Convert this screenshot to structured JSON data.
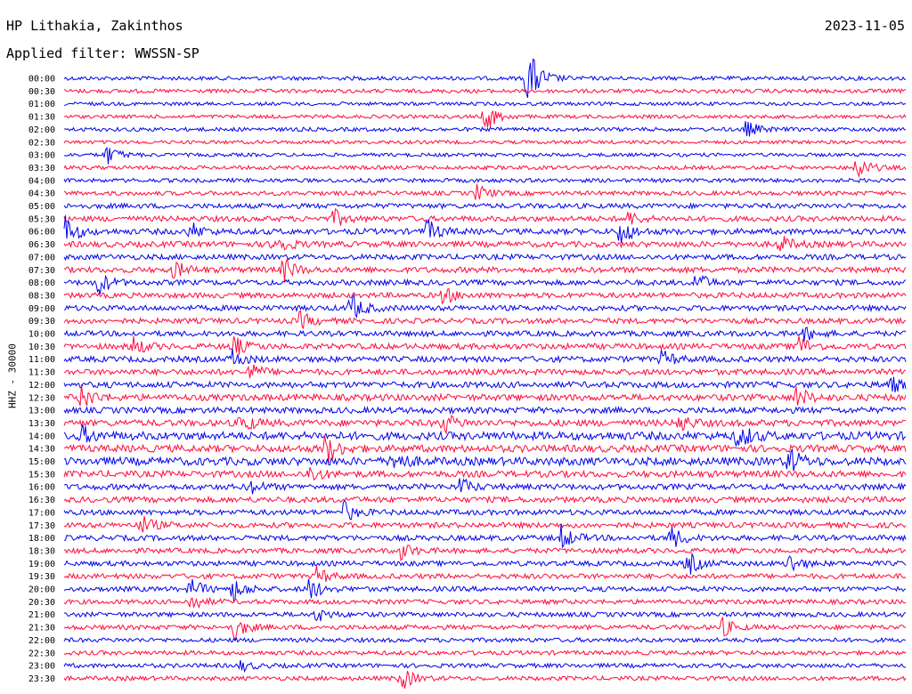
{
  "header": {
    "station": "HP Lithakia, Zakinthos",
    "filter": "Applied filter: WWSSN-SP",
    "date": "2023-11-05"
  },
  "side_label": "HHZ - 30000",
  "colors": {
    "blue": "#0000ee",
    "red": "#ff0a3c",
    "text": "#000000",
    "background": "#ffffff"
  },
  "chart_data": {
    "type": "line",
    "title": "HP Lithakia, Zakinthos",
    "subtitle": "Applied filter: WWSSN-SP",
    "ylabel": "HHZ - 30000",
    "color_pattern": [
      "blue",
      "red"
    ],
    "row_labels": [
      "00:00",
      "00:30",
      "01:00",
      "01:30",
      "02:00",
      "02:30",
      "03:00",
      "03:30",
      "04:00",
      "04:30",
      "05:00",
      "05:30",
      "06:00",
      "06:30",
      "07:00",
      "07:30",
      "08:00",
      "08:30",
      "09:00",
      "09:30",
      "10:00",
      "10:30",
      "11:00",
      "11:30",
      "12:00",
      "12:30",
      "13:00",
      "13:30",
      "14:00",
      "14:30",
      "15:00",
      "15:30",
      "16:00",
      "16:30",
      "17:00",
      "17:30",
      "18:00",
      "18:30",
      "19:00",
      "19:30",
      "20:00",
      "20:30",
      "21:00",
      "21:30",
      "22:00",
      "22:30",
      "23:00",
      "23:30"
    ],
    "noise_level": [
      2.2,
      2.2,
      2.0,
      2.0,
      2.2,
      2.0,
      2.0,
      2.2,
      2.2,
      2.4,
      2.8,
      3.0,
      3.2,
      3.2,
      3.0,
      3.2,
      3.0,
      3.0,
      3.0,
      3.0,
      3.0,
      3.2,
      3.2,
      3.2,
      3.4,
      3.6,
      3.4,
      3.6,
      4.5,
      4.0,
      4.5,
      3.6,
      3.2,
      3.2,
      3.0,
      3.0,
      3.0,
      2.8,
      2.8,
      2.8,
      2.8,
      2.6,
      2.6,
      2.6,
      2.4,
      2.4,
      2.4,
      2.4
    ],
    "events": [
      {
        "row": 0,
        "t": 0.55,
        "amp": 40
      },
      {
        "row": 3,
        "t": 0.5,
        "amp": 18
      },
      {
        "row": 4,
        "t": 0.81,
        "amp": 10
      },
      {
        "row": 6,
        "t": 0.05,
        "amp": 12
      },
      {
        "row": 7,
        "t": 0.94,
        "amp": 16
      },
      {
        "row": 9,
        "t": 0.49,
        "amp": 10
      },
      {
        "row": 11,
        "t": 0.32,
        "amp": 10
      },
      {
        "row": 11,
        "t": 0.67,
        "amp": 8
      },
      {
        "row": 12,
        "t": 0.0,
        "amp": 18
      },
      {
        "row": 12,
        "t": 0.15,
        "amp": 10
      },
      {
        "row": 12,
        "t": 0.43,
        "amp": 14
      },
      {
        "row": 12,
        "t": 0.66,
        "amp": 16
      },
      {
        "row": 13,
        "t": 0.25,
        "amp": 14
      },
      {
        "row": 13,
        "t": 0.85,
        "amp": 10
      },
      {
        "row": 15,
        "t": 0.13,
        "amp": 10
      },
      {
        "row": 15,
        "t": 0.26,
        "amp": 14
      },
      {
        "row": 16,
        "t": 0.04,
        "amp": 14
      },
      {
        "row": 16,
        "t": 0.75,
        "amp": 12
      },
      {
        "row": 17,
        "t": 0.45,
        "amp": 10
      },
      {
        "row": 18,
        "t": 0.34,
        "amp": 18
      },
      {
        "row": 19,
        "t": 0.28,
        "amp": 10
      },
      {
        "row": 20,
        "t": 0.88,
        "amp": 8
      },
      {
        "row": 21,
        "t": 0.08,
        "amp": 12
      },
      {
        "row": 21,
        "t": 0.2,
        "amp": 12
      },
      {
        "row": 21,
        "t": 0.87,
        "amp": 14
      },
      {
        "row": 22,
        "t": 0.2,
        "amp": 10
      },
      {
        "row": 22,
        "t": 0.71,
        "amp": 10
      },
      {
        "row": 23,
        "t": 0.22,
        "amp": 10
      },
      {
        "row": 24,
        "t": 0.98,
        "amp": 10
      },
      {
        "row": 25,
        "t": 0.02,
        "amp": 14
      },
      {
        "row": 25,
        "t": 0.87,
        "amp": 12
      },
      {
        "row": 27,
        "t": 0.21,
        "amp": 12
      },
      {
        "row": 27,
        "t": 0.45,
        "amp": 12
      },
      {
        "row": 27,
        "t": 0.73,
        "amp": 10
      },
      {
        "row": 28,
        "t": 0.8,
        "amp": 16
      },
      {
        "row": 28,
        "t": 0.02,
        "amp": 10
      },
      {
        "row": 29,
        "t": 0.31,
        "amp": 18
      },
      {
        "row": 30,
        "t": 0.39,
        "amp": 14
      },
      {
        "row": 30,
        "t": 0.86,
        "amp": 16
      },
      {
        "row": 31,
        "t": 0.29,
        "amp": 10
      },
      {
        "row": 32,
        "t": 0.47,
        "amp": 10
      },
      {
        "row": 32,
        "t": 0.22,
        "amp": 8
      },
      {
        "row": 34,
        "t": 0.33,
        "amp": 14
      },
      {
        "row": 35,
        "t": 0.09,
        "amp": 12
      },
      {
        "row": 36,
        "t": 0.59,
        "amp": 14
      },
      {
        "row": 36,
        "t": 0.72,
        "amp": 14
      },
      {
        "row": 37,
        "t": 0.4,
        "amp": 10
      },
      {
        "row": 38,
        "t": 0.74,
        "amp": 14
      },
      {
        "row": 38,
        "t": 0.86,
        "amp": 12
      },
      {
        "row": 39,
        "t": 0.3,
        "amp": 10
      },
      {
        "row": 40,
        "t": 0.15,
        "amp": 12
      },
      {
        "row": 40,
        "t": 0.2,
        "amp": 14
      },
      {
        "row": 40,
        "t": 0.29,
        "amp": 14
      },
      {
        "row": 41,
        "t": 0.15,
        "amp": 10
      },
      {
        "row": 42,
        "t": 0.3,
        "amp": 8
      },
      {
        "row": 43,
        "t": 0.2,
        "amp": 16
      },
      {
        "row": 43,
        "t": 0.78,
        "amp": 12
      },
      {
        "row": 46,
        "t": 0.21,
        "amp": 6
      },
      {
        "row": 47,
        "t": 0.4,
        "amp": 14
      }
    ]
  }
}
